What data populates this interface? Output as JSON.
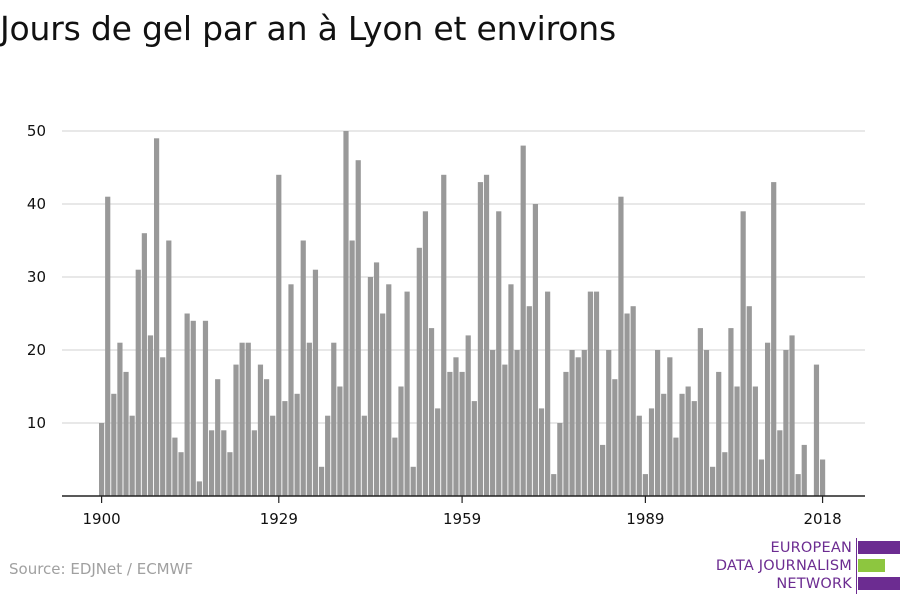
{
  "title": "Jours de gel par an à Lyon et environs",
  "source": "Source: EDJNet / ECMWF",
  "logo": {
    "line1": "EUROPEAN",
    "line2": "DATA JOURNALISM",
    "line3": "NETWORK",
    "colors": [
      "#6c2c91",
      "#8dc63f",
      "#6c2c91"
    ]
  },
  "chart_data": {
    "type": "bar",
    "start_year": 1900,
    "x": [
      1900,
      1901,
      1902,
      1903,
      1904,
      1905,
      1906,
      1907,
      1908,
      1909,
      1910,
      1911,
      1912,
      1913,
      1914,
      1915,
      1916,
      1917,
      1918,
      1919,
      1920,
      1921,
      1922,
      1923,
      1924,
      1925,
      1926,
      1927,
      1928,
      1929,
      1930,
      1931,
      1932,
      1933,
      1934,
      1935,
      1936,
      1937,
      1938,
      1939,
      1940,
      1941,
      1942,
      1943,
      1944,
      1945,
      1946,
      1947,
      1948,
      1949,
      1950,
      1951,
      1952,
      1953,
      1954,
      1955,
      1956,
      1957,
      1958,
      1959,
      1960,
      1961,
      1962,
      1963,
      1964,
      1965,
      1966,
      1967,
      1968,
      1969,
      1970,
      1971,
      1972,
      1973,
      1974,
      1975,
      1976,
      1977,
      1978,
      1979,
      1980,
      1981,
      1982,
      1983,
      1984,
      1985,
      1986,
      1987,
      1988,
      1989,
      1990,
      1991,
      1992,
      1993,
      1994,
      1995,
      1996,
      1997,
      1998,
      1999,
      2000,
      2001,
      2002,
      2003,
      2004,
      2005,
      2006,
      2007,
      2008,
      2009,
      2010,
      2011,
      2012,
      2013,
      2014,
      2015,
      2016,
      2017,
      2018,
      2019
    ],
    "values": [
      10,
      41,
      14,
      21,
      17,
      11,
      31,
      36,
      22,
      49,
      19,
      35,
      8,
      6,
      25,
      24,
      2,
      24,
      9,
      16,
      9,
      6,
      18,
      21,
      21,
      9,
      18,
      16,
      11,
      44,
      13,
      29,
      14,
      35,
      21,
      31,
      4,
      11,
      21,
      15,
      50,
      35,
      46,
      11,
      30,
      32,
      25,
      29,
      8,
      15,
      28,
      4,
      34,
      39,
      23,
      12,
      44,
      17,
      19,
      17,
      22,
      13,
      43,
      44,
      20,
      39,
      18,
      29,
      20,
      48,
      26,
      40,
      12,
      28,
      3,
      10,
      17,
      20,
      19,
      20,
      28,
      28,
      7,
      20,
      16,
      41,
      25,
      26,
      11,
      3,
      12,
      20,
      14,
      19,
      8,
      14,
      15,
      13,
      23,
      20,
      4,
      17,
      6,
      23,
      15,
      39,
      26,
      15,
      5,
      21,
      43,
      9,
      20,
      22,
      3,
      7,
      0,
      18,
      5,
      0
    ],
    "x_ticks": [
      "1900",
      "1929",
      "1959",
      "1989",
      "2018"
    ],
    "y_ticks": [
      "10",
      "20",
      "30",
      "40",
      "50"
    ],
    "ylim": [
      0,
      50
    ],
    "grid": true,
    "bar_color": "#999999",
    "grid_color": "#d9d9d9",
    "axis_color": "#222222"
  }
}
